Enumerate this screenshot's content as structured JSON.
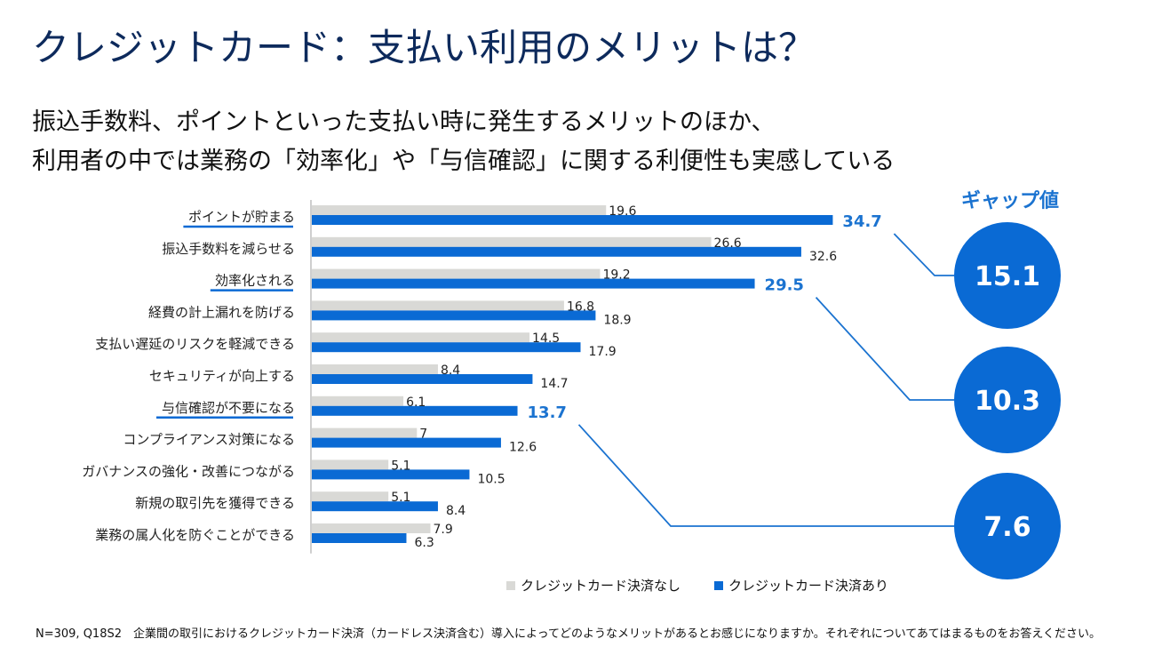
{
  "title": "クレジットカード：支払い利用のメリットは？",
  "subtitle": [
    "振込手数料、ポイントといった支払い時に発生するメリットのほか、",
    "利用者の中では業務の「効率化」や「与信確認」に関する利便性も実感している"
  ],
  "colors": {
    "without": "#d9d9d6",
    "with": "#0a6ad4",
    "highlight_text": "#1b73d0",
    "title": "#0d2a5c",
    "connector": "#1b73d0"
  },
  "chart_data": {
    "type": "bar",
    "orientation": "horizontal",
    "title": "",
    "xlabel": "",
    "ylabel": "",
    "xlim": [
      0,
      36
    ],
    "grid": false,
    "legend_position": "bottom",
    "categories": [
      "ポイントが貯まる",
      "振込手数料を減らせる",
      "効率化される",
      "経費の計上漏れを防げる",
      "支払い遅延のリスクを軽減できる",
      "セキュリティが向上する",
      "与信確認が不要になる",
      "コンプライアンス対策になる",
      "ガバナンスの強化・改善につながる",
      "新規の取引先を獲得できる",
      "業務の属人化を防ぐことができる"
    ],
    "series": [
      {
        "name": "クレジットカード決済なし",
        "values": [
          19.6,
          26.6,
          19.2,
          16.8,
          14.5,
          8.4,
          6.1,
          7,
          5.1,
          5.1,
          7.9
        ]
      },
      {
        "name": "クレジットカード決済あり",
        "values": [
          34.7,
          32.6,
          29.5,
          18.9,
          17.9,
          14.7,
          13.7,
          12.6,
          10.5,
          8.4,
          6.3
        ]
      }
    ],
    "value_labels_without": [
      "19.6",
      "26.6",
      "19.2",
      "16.8",
      "14.5",
      "8.4",
      "6.1",
      "7",
      "5.1",
      "5.1",
      "7.9"
    ],
    "value_labels_with": [
      "34.7",
      "32.6",
      "29.5",
      "18.9",
      "17.9",
      "14.7",
      "13.7",
      "12.6",
      "10.5",
      "8.4",
      "6.3"
    ],
    "highlighted_categories": [
      0,
      2,
      6
    ],
    "gap_title": "ギャップ値",
    "gaps": [
      {
        "category_index": 0,
        "value": "15.1"
      },
      {
        "category_index": 2,
        "value": "10.3"
      },
      {
        "category_index": 6,
        "value": "7.6"
      }
    ]
  },
  "legend": {
    "without": "クレジットカード決済なし",
    "with": "クレジットカード決済あり"
  },
  "footnote": "N=309, Q18S2　企業間の取引におけるクレジットカード決済（カードレス決済含む）導入によってどのようなメリットがあるとお感じになりますか。それぞれについてあてはまるものをお答えください。"
}
